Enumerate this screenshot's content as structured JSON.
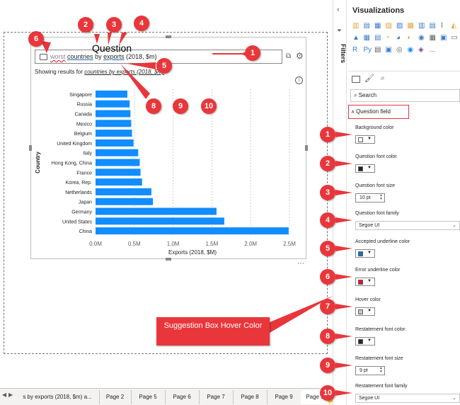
{
  "canvas": {
    "question_title": "Question",
    "qa_words": [
      {
        "text": "worst",
        "kind": "error"
      },
      {
        "text": " ",
        "kind": "plain"
      },
      {
        "text": "countries",
        "kind": "accepted"
      },
      {
        "text": " by ",
        "kind": "plain"
      },
      {
        "text": "exports",
        "kind": "accepted"
      },
      {
        "text": " (2018, $m)",
        "kind": "plain"
      }
    ],
    "restatement_prefix": "Showing results for ",
    "restatement_link": "countries by exports (2018, $m)",
    "info_glyph": "i",
    "more_glyph": "⋯",
    "suggestion_label": "Suggestion Box Hover Color"
  },
  "chart_data": {
    "type": "bar",
    "orientation": "horizontal",
    "categories": [
      "Singapore",
      "Russia",
      "Canada",
      "Mexico",
      "Belgium",
      "United Kingdom",
      "Italy",
      "Hong Kong, China",
      "France",
      "Korea, Rep.",
      "Netherlands",
      "Japan",
      "Germany",
      "United States",
      "China"
    ],
    "values": [
      0.41,
      0.44,
      0.45,
      0.46,
      0.47,
      0.49,
      0.55,
      0.57,
      0.58,
      0.6,
      0.72,
      0.74,
      1.56,
      1.66,
      2.49
    ],
    "ylabel": "Country",
    "xlabel": "Exports (2018, $M)",
    "xlim": [
      0,
      2.5
    ],
    "xticks": [
      0,
      0.5,
      1.0,
      1.5,
      2.0,
      2.5
    ],
    "xtick_labels": [
      "0.0M",
      "0.5M",
      "1.0M",
      "1.5M",
      "2.0M",
      "2.5M"
    ],
    "bar_color": "#118dff",
    "grid": true
  },
  "callouts_left": [
    "1",
    "2",
    "3",
    "4",
    "5",
    "6",
    "7",
    "8",
    "9",
    "10"
  ],
  "callouts_right": [
    "1",
    "2",
    "3",
    "4",
    "5",
    "6",
    "7",
    "8",
    "9",
    "10"
  ],
  "tabs": [
    {
      "label": "s by exports (2018, $m) a...",
      "active": false
    },
    {
      "label": "Page 2",
      "active": false
    },
    {
      "label": "Page 5",
      "active": false
    },
    {
      "label": "Page 6",
      "active": false
    },
    {
      "label": "Page 7",
      "active": false
    },
    {
      "label": "Page 8",
      "active": false
    },
    {
      "label": "Page 9",
      "active": false
    },
    {
      "label": "Page 1",
      "active": true
    }
  ],
  "tab_add": "+",
  "filters_label": "Filters",
  "viz_pane": {
    "title": "Visualizations",
    "more": "...",
    "search_placeholder": "Search",
    "section_header": "Question field",
    "fields": [
      {
        "label": "Background color",
        "type": "color",
        "swatch": "#ffffff"
      },
      {
        "label": "Question font color",
        "type": "color",
        "swatch": "#252423"
      },
      {
        "label": "Question font size",
        "type": "number",
        "value": "10",
        "unit": "pt"
      },
      {
        "label": "Question font family",
        "type": "select",
        "value": "Segoe UI"
      },
      {
        "label": "Accepted underline color",
        "type": "color",
        "swatch": "#1170cf"
      },
      {
        "label": "Error underline color",
        "type": "color",
        "swatch": "#e81123"
      },
      {
        "label": "Hover color",
        "type": "color",
        "swatch": "#c8c6c4"
      },
      {
        "label": "Restatement font color",
        "type": "color",
        "swatch": "#252423"
      },
      {
        "label": "Restatement font size",
        "type": "number",
        "value": "9",
        "unit": "pt"
      },
      {
        "label": "Restatement font family",
        "type": "select",
        "value": "Segoe UI"
      }
    ]
  },
  "colors": {
    "accent": "#f2c811",
    "callout": "#e8363b",
    "bar": "#118dff"
  }
}
